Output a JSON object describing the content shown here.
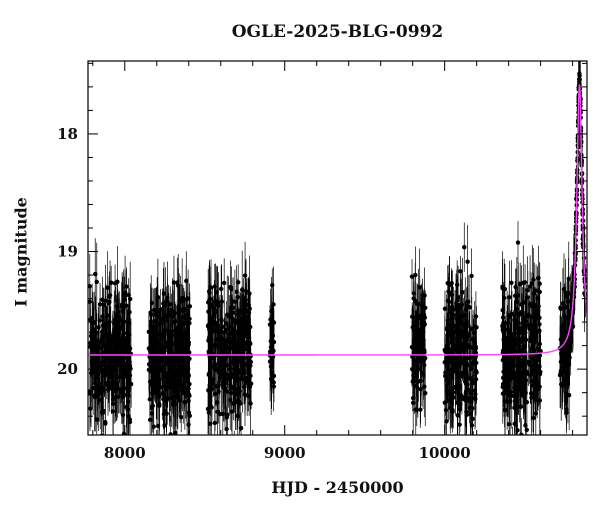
{
  "chart_data": {
    "type": "scatter",
    "title": "OGLE-2025-BLG-0992",
    "xlabel": "HJD - 2450000",
    "ylabel": "I magnitude",
    "xlim": [
      7770,
      10890
    ],
    "ylim": [
      20.56,
      17.38
    ],
    "y_inverted": true,
    "xticks": [
      8000,
      9000,
      10000
    ],
    "yticks": [
      18,
      19,
      20
    ],
    "baseline_magnitude": 19.88,
    "observing_seasons": [
      {
        "start": 7780,
        "end": 8040,
        "center": 19.88,
        "spread": 0.5
      },
      {
        "start": 8150,
        "end": 8410,
        "center": 19.88,
        "spread": 0.5
      },
      {
        "start": 8520,
        "end": 8790,
        "center": 19.88,
        "spread": 0.5
      },
      {
        "start": 8905,
        "end": 8935,
        "center": 19.75,
        "spread": 0.35
      },
      {
        "start": 9795,
        "end": 9880,
        "center": 19.8,
        "spread": 0.45
      },
      {
        "start": 10000,
        "end": 10200,
        "center": 19.88,
        "spread": 0.55
      },
      {
        "start": 10360,
        "end": 10600,
        "center": 19.88,
        "spread": 0.55
      },
      {
        "start": 10720,
        "end": 10880,
        "center": 19.88,
        "spread": 0.45
      }
    ],
    "peak": {
      "x": 10843,
      "magnitude": 17.58
    },
    "series": [
      {
        "role": "data",
        "color": "#000000"
      },
      {
        "role": "model",
        "color": "#ff44ff"
      }
    ],
    "grid": false
  }
}
